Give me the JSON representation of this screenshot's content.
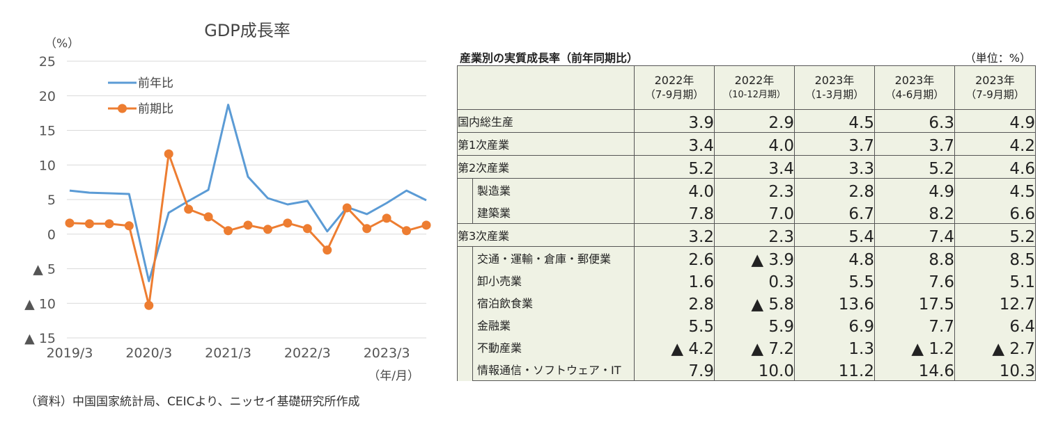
{
  "chart_data": {
    "type": "line",
    "title": "GDP成長率",
    "y_unit_label": "（%）",
    "x_unit_label": "（年/月）",
    "ylim": [
      -15,
      25
    ],
    "y_ticks": [
      25,
      20,
      15,
      10,
      5,
      0,
      -5,
      -10,
      -15
    ],
    "y_tick_labels": [
      "25",
      "20",
      "15",
      "10",
      "5",
      "0",
      "▲ 5",
      "▲ 10",
      "▲ 15"
    ],
    "x_tick_labels": [
      "2019/3",
      "2020/3",
      "2021/3",
      "2022/3",
      "2023/3"
    ],
    "x": [
      "2019/3",
      "2019/6",
      "2019/9",
      "2019/12",
      "2020/3",
      "2020/6",
      "2020/9",
      "2020/12",
      "2021/3",
      "2021/6",
      "2021/9",
      "2021/12",
      "2022/3",
      "2022/6",
      "2022/9",
      "2022/12",
      "2023/3",
      "2023/6",
      "2023/9"
    ],
    "grid": true,
    "legend_position": "top-left",
    "series": [
      {
        "name": "前年比",
        "color": "#5b9bd5",
        "values": [
          6.3,
          6.0,
          5.9,
          5.8,
          -6.8,
          3.1,
          4.8,
          6.4,
          18.7,
          8.3,
          5.2,
          4.3,
          4.8,
          0.4,
          3.9,
          2.9,
          4.5,
          6.3,
          4.9
        ]
      },
      {
        "name": "前期比",
        "color": "#ed7d31",
        "values": [
          1.6,
          1.5,
          1.5,
          1.2,
          -10.3,
          11.6,
          3.6,
          2.5,
          0.5,
          1.3,
          0.7,
          1.6,
          0.8,
          -2.3,
          3.8,
          0.8,
          2.3,
          0.5,
          1.3
        ]
      }
    ]
  },
  "table": {
    "title": "産業別の実質成長率（前年同期比）",
    "unit": "（単位：%）",
    "columns": [
      {
        "line1": "2022年",
        "line2": "（7-9月期）"
      },
      {
        "line1": "2022年",
        "line2": "（10-12月期）"
      },
      {
        "line1": "2023年",
        "line2": "（1-3月期）"
      },
      {
        "line1": "2023年",
        "line2": "（4-6月期）"
      },
      {
        "line1": "2023年",
        "line2": "（7-9月期）"
      }
    ],
    "rows": [
      {
        "name": "国内総生産",
        "values": [
          "3.9",
          "2.9",
          "4.5",
          "6.3",
          "4.9"
        ]
      },
      {
        "name": "第1次産業",
        "values": [
          "3.4",
          "4.0",
          "3.7",
          "3.7",
          "4.2"
        ]
      },
      {
        "name": "第2次産業",
        "values": [
          "5.2",
          "3.4",
          "3.3",
          "5.2",
          "4.6"
        ]
      },
      {
        "name": "製造業",
        "values": [
          "4.0",
          "2.3",
          "2.8",
          "4.9",
          "4.5"
        ]
      },
      {
        "name": "建築業",
        "values": [
          "7.8",
          "7.0",
          "6.7",
          "8.2",
          "6.6"
        ]
      },
      {
        "name": "第3次産業",
        "values": [
          "3.2",
          "2.3",
          "5.4",
          "7.4",
          "5.2"
        ]
      },
      {
        "name": "交通・運輸・倉庫・郵便業",
        "values": [
          "2.6",
          "▲ 3.9",
          "4.8",
          "8.8",
          "8.5"
        ]
      },
      {
        "name": "卸小売業",
        "values": [
          "1.6",
          "0.3",
          "5.5",
          "7.6",
          "5.1"
        ]
      },
      {
        "name": "宿泊飲食業",
        "values": [
          "2.8",
          "▲ 5.8",
          "13.6",
          "17.5",
          "12.7"
        ]
      },
      {
        "name": "金融業",
        "values": [
          "5.5",
          "5.9",
          "6.9",
          "7.7",
          "6.4"
        ]
      },
      {
        "name": "不動産業",
        "values": [
          "▲ 4.2",
          "▲ 7.2",
          "1.3",
          "▲ 1.2",
          "▲ 2.7"
        ]
      },
      {
        "name": "情報通信・ソフトウェア・IT",
        "values": [
          "7.9",
          "10.0",
          "11.2",
          "14.6",
          "10.3"
        ]
      }
    ]
  },
  "source_note": "（資料）中国国家統計局、CEICより、ニッセイ基礎研究所作成"
}
